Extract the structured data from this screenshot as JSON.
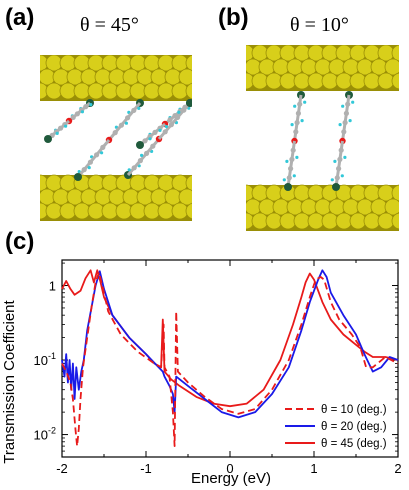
{
  "panels": {
    "a": {
      "label": "(a)",
      "angle": "θ = 45°"
    },
    "b": {
      "label": "(b)",
      "angle": "θ = 10°"
    },
    "c": {
      "label": "(c)"
    }
  },
  "colors": {
    "gold": "#d8cf1a",
    "gold_dark": "#9a8f06",
    "carbon": "#b0b0b0",
    "hydrogen": "#32c8d8",
    "oxygen": "#e81a1a",
    "sulfur": "#205a3c"
  },
  "chart_data": {
    "type": "line",
    "xlabel": "Energy (eV)",
    "ylabel": "Transmission Coefficient",
    "xlim": [
      -2,
      2
    ],
    "ylim": [
      0.005,
      2.2
    ],
    "yscale": "log",
    "x_ticks": [
      "-2",
      "-1",
      "0",
      "1",
      "2"
    ],
    "y_ticks": [
      "10-2",
      "10-1",
      "1"
    ],
    "legend_position": "bottom-right",
    "series": [
      {
        "name": "θ = 10 (deg.)",
        "color": "#e81a1a",
        "dash": "dashed",
        "points": [
          [
            -2.0,
            0.09
          ],
          [
            -1.95,
            0.07
          ],
          [
            -1.9,
            0.05
          ],
          [
            -1.87,
            0.03
          ],
          [
            -1.84,
            0.012
          ],
          [
            -1.82,
            0.007
          ],
          [
            -1.8,
            0.012
          ],
          [
            -1.78,
            0.03
          ],
          [
            -1.75,
            0.08
          ],
          [
            -1.7,
            0.2
          ],
          [
            -1.65,
            0.5
          ],
          [
            -1.6,
            1.1
          ],
          [
            -1.56,
            1.5
          ],
          [
            -1.52,
            1.0
          ],
          [
            -1.45,
            0.45
          ],
          [
            -1.3,
            0.22
          ],
          [
            -1.1,
            0.13
          ],
          [
            -0.9,
            0.09
          ],
          [
            -0.82,
            0.08
          ],
          [
            -0.79,
            0.3
          ],
          [
            -0.78,
            0.08
          ],
          [
            -0.72,
            0.06
          ],
          [
            -0.68,
            0.02
          ],
          [
            -0.66,
            0.007
          ],
          [
            -0.64,
            0.45
          ],
          [
            -0.62,
            0.07
          ],
          [
            -0.5,
            0.05
          ],
          [
            -0.3,
            0.032
          ],
          [
            -0.1,
            0.022
          ],
          [
            0.1,
            0.019
          ],
          [
            0.3,
            0.022
          ],
          [
            0.5,
            0.04
          ],
          [
            0.7,
            0.1
          ],
          [
            0.85,
            0.3
          ],
          [
            0.95,
            0.7
          ],
          [
            1.02,
            1.2
          ],
          [
            1.08,
            1.3
          ],
          [
            1.12,
            1.2
          ],
          [
            1.2,
            0.6
          ],
          [
            1.3,
            0.35
          ],
          [
            1.45,
            0.22
          ],
          [
            1.55,
            0.15
          ],
          [
            1.62,
            0.08
          ],
          [
            1.7,
            0.08
          ],
          [
            1.85,
            0.11
          ],
          [
            2.0,
            0.09
          ]
        ]
      },
      {
        "name": "θ = 20 (deg.)",
        "color": "#1a1ae8",
        "dash": "solid",
        "points": [
          [
            -2.0,
            0.1
          ],
          [
            -1.97,
            0.06
          ],
          [
            -1.95,
            0.12
          ],
          [
            -1.93,
            0.05
          ],
          [
            -1.91,
            0.1
          ],
          [
            -1.89,
            0.04
          ],
          [
            -1.87,
            0.09
          ],
          [
            -1.85,
            0.03
          ],
          [
            -1.83,
            0.08
          ],
          [
            -1.8,
            0.04
          ],
          [
            -1.77,
            0.07
          ],
          [
            -1.74,
            0.1
          ],
          [
            -1.7,
            0.25
          ],
          [
            -1.65,
            0.5
          ],
          [
            -1.6,
            1.0
          ],
          [
            -1.55,
            1.55
          ],
          [
            -1.5,
            0.9
          ],
          [
            -1.4,
            0.4
          ],
          [
            -1.2,
            0.2
          ],
          [
            -1.0,
            0.12
          ],
          [
            -0.85,
            0.08
          ],
          [
            -0.8,
            0.07
          ],
          [
            -0.78,
            0.06
          ],
          [
            -0.72,
            0.045
          ],
          [
            -0.68,
            0.035
          ],
          [
            -0.66,
            0.02
          ],
          [
            -0.64,
            0.06
          ],
          [
            -0.5,
            0.045
          ],
          [
            -0.3,
            0.03
          ],
          [
            -0.1,
            0.02
          ],
          [
            0.1,
            0.017
          ],
          [
            0.3,
            0.02
          ],
          [
            0.5,
            0.035
          ],
          [
            0.7,
            0.08
          ],
          [
            0.85,
            0.25
          ],
          [
            0.95,
            0.6
          ],
          [
            1.05,
            1.2
          ],
          [
            1.1,
            1.6
          ],
          [
            1.15,
            1.3
          ],
          [
            1.2,
            0.8
          ],
          [
            1.35,
            0.4
          ],
          [
            1.5,
            0.22
          ],
          [
            1.6,
            0.12
          ],
          [
            1.7,
            0.07
          ],
          [
            1.8,
            0.08
          ],
          [
            1.9,
            0.11
          ],
          [
            2.0,
            0.1
          ]
        ]
      },
      {
        "name": "θ = 45 (deg.)",
        "color": "#e81a1a",
        "dash": "solid",
        "points": [
          [
            -2.0,
            0.9
          ],
          [
            -1.95,
            1.15
          ],
          [
            -1.9,
            0.9
          ],
          [
            -1.85,
            0.75
          ],
          [
            -1.78,
            0.85
          ],
          [
            -1.72,
            1.25
          ],
          [
            -1.66,
            1.6
          ],
          [
            -1.62,
            1.1
          ],
          [
            -1.58,
            1.6
          ],
          [
            -1.54,
            1.1
          ],
          [
            -1.5,
            0.7
          ],
          [
            -1.4,
            0.4
          ],
          [
            -1.2,
            0.2
          ],
          [
            -1.0,
            0.12
          ],
          [
            -0.9,
            0.09
          ],
          [
            -0.82,
            0.08
          ],
          [
            -0.8,
            0.35
          ],
          [
            -0.78,
            0.07
          ],
          [
            -0.7,
            0.055
          ],
          [
            -0.6,
            0.045
          ],
          [
            -0.4,
            0.032
          ],
          [
            -0.2,
            0.026
          ],
          [
            0.0,
            0.024
          ],
          [
            0.2,
            0.026
          ],
          [
            0.4,
            0.04
          ],
          [
            0.6,
            0.1
          ],
          [
            0.75,
            0.3
          ],
          [
            0.85,
            0.7
          ],
          [
            0.9,
            1.1
          ],
          [
            0.95,
            1.45
          ],
          [
            1.0,
            1.2
          ],
          [
            1.1,
            0.6
          ],
          [
            1.2,
            0.35
          ],
          [
            1.35,
            0.22
          ],
          [
            1.5,
            0.16
          ],
          [
            1.6,
            0.13
          ],
          [
            1.7,
            0.11
          ],
          [
            1.85,
            0.11
          ],
          [
            2.0,
            0.1
          ]
        ]
      }
    ]
  }
}
